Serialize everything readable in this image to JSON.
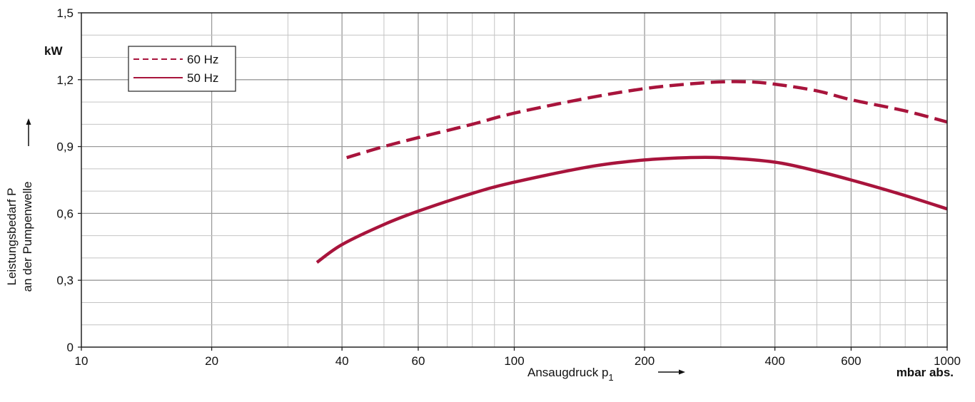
{
  "chart_data": {
    "type": "line",
    "x_scale": "log",
    "xlim": [
      10,
      1000
    ],
    "ylim": [
      0,
      1.5
    ],
    "x_ticks": [
      10,
      20,
      40,
      60,
      100,
      200,
      400,
      600,
      1000
    ],
    "x_tick_labels": [
      "10",
      "20",
      "40",
      "60",
      "100",
      "200",
      "400",
      "600",
      "1000"
    ],
    "y_ticks": [
      0,
      0.3,
      0.6,
      0.9,
      1.2,
      1.5
    ],
    "y_tick_labels": [
      "0",
      "0,3",
      "0,6",
      "0,9",
      "1,2",
      "1,5"
    ],
    "y_unit": "kW",
    "ylabel_line1": "Leistungsbedarf P",
    "ylabel_line2": "an der Pumpenwelle",
    "xlabel": "Ansaugdruck p",
    "xlabel_subscript": "1",
    "x_unit": "mbar abs.",
    "grid": true,
    "legend_position": "top-left",
    "series": [
      {
        "name": "60 Hz",
        "style": "dashed",
        "color": "#a8143c",
        "x": [
          41,
          50,
          60,
          80,
          100,
          150,
          200,
          250,
          300,
          350,
          400,
          500,
          600,
          800,
          1000
        ],
        "y": [
          0.85,
          0.9,
          0.94,
          1.0,
          1.05,
          1.12,
          1.16,
          1.18,
          1.19,
          1.19,
          1.18,
          1.15,
          1.11,
          1.06,
          1.01
        ]
      },
      {
        "name": "50 Hz",
        "style": "solid",
        "color": "#a8143c",
        "x": [
          35,
          40,
          50,
          60,
          80,
          100,
          150,
          200,
          250,
          300,
          400,
          500,
          600,
          800,
          1000
        ],
        "y": [
          0.38,
          0.46,
          0.55,
          0.61,
          0.69,
          0.74,
          0.81,
          0.84,
          0.85,
          0.85,
          0.83,
          0.79,
          0.75,
          0.68,
          0.62
        ]
      }
    ]
  }
}
